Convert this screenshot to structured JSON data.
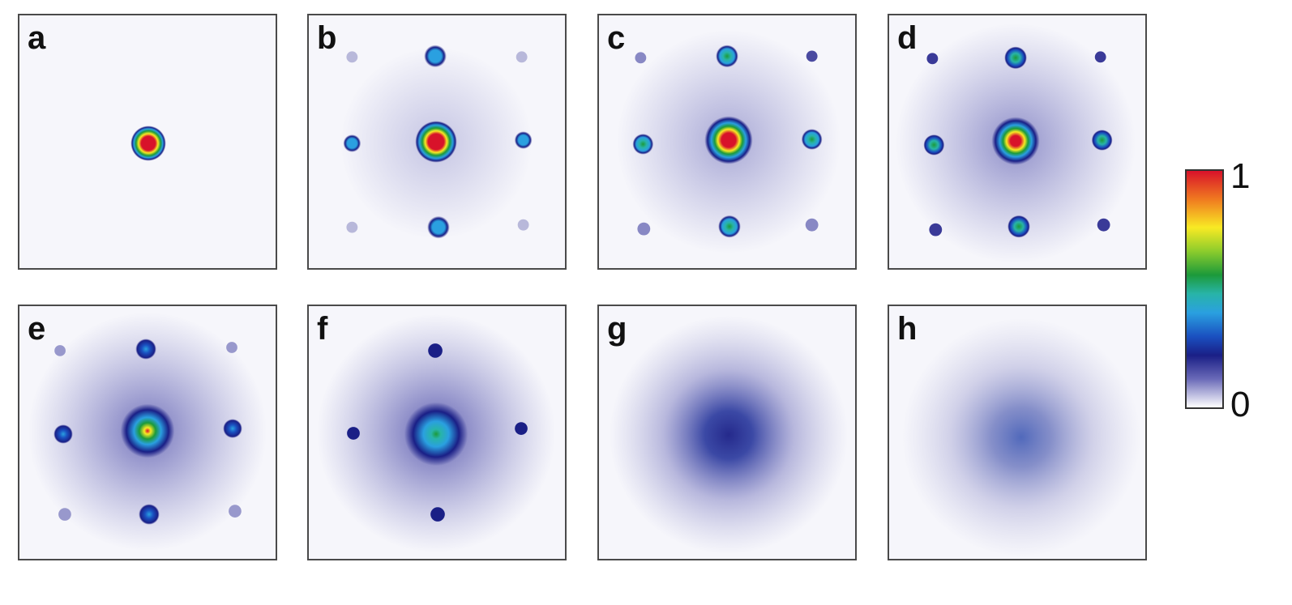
{
  "panels": [
    {
      "label": "a"
    },
    {
      "label": "b"
    },
    {
      "label": "c"
    },
    {
      "label": "d"
    },
    {
      "label": "e"
    },
    {
      "label": "f"
    },
    {
      "label": "g"
    },
    {
      "label": "h"
    }
  ],
  "colorbar": {
    "max_label": "1",
    "min_label": "0"
  },
  "colors": {
    "high": "#d8122a",
    "mid": "#1c9a3a",
    "low": "#1a1f86",
    "background": "#ffffff"
  }
}
